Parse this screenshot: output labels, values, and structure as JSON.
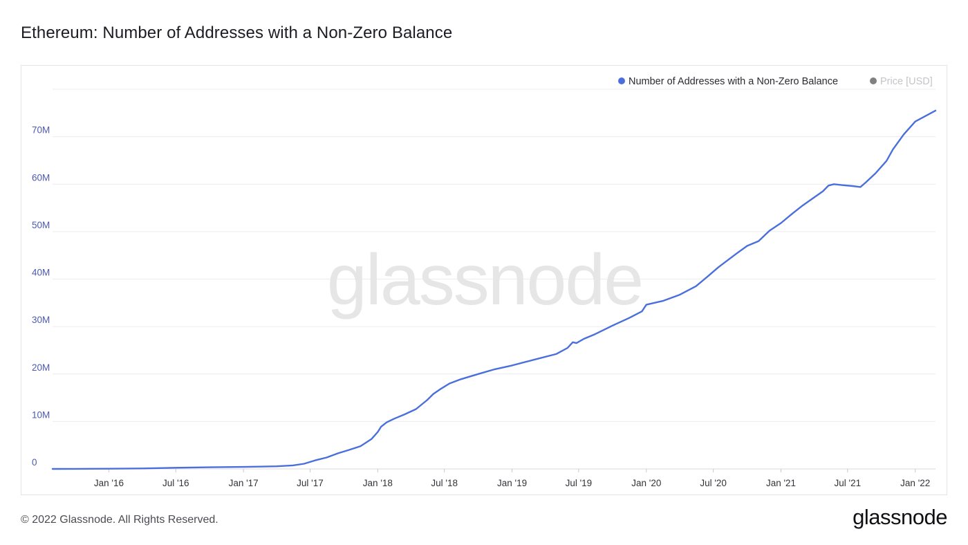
{
  "page": {
    "title": "Ethereum: Number of Addresses with a Non-Zero Balance",
    "copyright": "© 2022 Glassnode. All Rights Reserved.",
    "logo_text": "glassnode",
    "watermark": "glassnode"
  },
  "colors": {
    "series_line": "#4a6fdc",
    "legend_series_dot": "#4a6fdc",
    "legend_price_dot": "#808080",
    "legend_price_text": "#c4c4c8",
    "axis_label": "#4d5ab0",
    "x_tick_label": "#333338",
    "grid": "#ececf0",
    "watermark": "#e6e6e6"
  },
  "chart_data": {
    "type": "line",
    "title": "Ethereum: Number of Addresses with a Non-Zero Balance",
    "legend": {
      "placement": "top-right",
      "items": [
        {
          "name": "Number of Addresses with a Non-Zero Balance",
          "active": true
        },
        {
          "name": "Price [USD]",
          "active": false
        }
      ]
    },
    "grid": true,
    "x_axis": {
      "type": "date",
      "range": [
        "2015-08-01",
        "2022-02-25"
      ],
      "ticks": [
        {
          "date": "2016-01-01",
          "label": "Jan '16"
        },
        {
          "date": "2016-07-01",
          "label": "Jul '16"
        },
        {
          "date": "2017-01-01",
          "label": "Jan '17"
        },
        {
          "date": "2017-07-01",
          "label": "Jul '17"
        },
        {
          "date": "2018-01-01",
          "label": "Jan '18"
        },
        {
          "date": "2018-07-01",
          "label": "Jul '18"
        },
        {
          "date": "2019-01-01",
          "label": "Jan '19"
        },
        {
          "date": "2019-07-01",
          "label": "Jul '19"
        },
        {
          "date": "2020-01-01",
          "label": "Jan '20"
        },
        {
          "date": "2020-07-01",
          "label": "Jul '20"
        },
        {
          "date": "2021-01-01",
          "label": "Jan '21"
        },
        {
          "date": "2021-07-01",
          "label": "Jul '21"
        },
        {
          "date": "2022-01-01",
          "label": "Jan '22"
        }
      ]
    },
    "y_axis": {
      "range": [
        0,
        80000000
      ],
      "ticks": [
        {
          "value": 0,
          "label": "0"
        },
        {
          "value": 10000000,
          "label": "10M"
        },
        {
          "value": 20000000,
          "label": "20M"
        },
        {
          "value": 30000000,
          "label": "30M"
        },
        {
          "value": 40000000,
          "label": "40M"
        },
        {
          "value": 50000000,
          "label": "50M"
        },
        {
          "value": 60000000,
          "label": "60M"
        },
        {
          "value": 70000000,
          "label": "70M"
        }
      ]
    },
    "series": [
      {
        "name": "Number of Addresses with a Non-Zero Balance",
        "points": [
          [
            "2015-08-01",
            0
          ],
          [
            "2015-10-01",
            20000
          ],
          [
            "2016-01-01",
            50000
          ],
          [
            "2016-04-01",
            100000
          ],
          [
            "2016-07-01",
            250000
          ],
          [
            "2016-10-01",
            350000
          ],
          [
            "2017-01-01",
            420000
          ],
          [
            "2017-04-01",
            550000
          ],
          [
            "2017-05-15",
            750000
          ],
          [
            "2017-06-15",
            1100000
          ],
          [
            "2017-07-15",
            1800000
          ],
          [
            "2017-08-15",
            2400000
          ],
          [
            "2017-09-15",
            3300000
          ],
          [
            "2017-10-15",
            4000000
          ],
          [
            "2017-11-15",
            4800000
          ],
          [
            "2017-12-15",
            6300000
          ],
          [
            "2018-01-01",
            7800000
          ],
          [
            "2018-01-10",
            8900000
          ],
          [
            "2018-01-25",
            9800000
          ],
          [
            "2018-02-15",
            10600000
          ],
          [
            "2018-03-15",
            11500000
          ],
          [
            "2018-04-15",
            12600000
          ],
          [
            "2018-05-15",
            14500000
          ],
          [
            "2018-06-01",
            15800000
          ],
          [
            "2018-06-20",
            16800000
          ],
          [
            "2018-07-15",
            18000000
          ],
          [
            "2018-08-15",
            18900000
          ],
          [
            "2018-10-01",
            20000000
          ],
          [
            "2018-11-15",
            21000000
          ],
          [
            "2019-01-01",
            21800000
          ],
          [
            "2019-03-01",
            23000000
          ],
          [
            "2019-05-01",
            24200000
          ],
          [
            "2019-06-01",
            25500000
          ],
          [
            "2019-06-15",
            26700000
          ],
          [
            "2019-06-25",
            26500000
          ],
          [
            "2019-07-15",
            27400000
          ],
          [
            "2019-08-15",
            28400000
          ],
          [
            "2019-10-01",
            30200000
          ],
          [
            "2019-11-15",
            31800000
          ],
          [
            "2019-12-20",
            33200000
          ],
          [
            "2020-01-01",
            34600000
          ],
          [
            "2020-02-15",
            35400000
          ],
          [
            "2020-04-01",
            36700000
          ],
          [
            "2020-05-15",
            38500000
          ],
          [
            "2020-06-15",
            40500000
          ],
          [
            "2020-07-15",
            42500000
          ],
          [
            "2020-09-01",
            45300000
          ],
          [
            "2020-10-01",
            47000000
          ],
          [
            "2020-11-01",
            48000000
          ],
          [
            "2020-12-01",
            50200000
          ],
          [
            "2021-01-01",
            51800000
          ],
          [
            "2021-02-01",
            53800000
          ],
          [
            "2021-03-01",
            55500000
          ],
          [
            "2021-04-01",
            57200000
          ],
          [
            "2021-04-25",
            58500000
          ],
          [
            "2021-05-10",
            59700000
          ],
          [
            "2021-05-25",
            60000000
          ],
          [
            "2021-06-15",
            59800000
          ],
          [
            "2021-07-15",
            59600000
          ],
          [
            "2021-08-05",
            59400000
          ],
          [
            "2021-08-20",
            60400000
          ],
          [
            "2021-09-15",
            62300000
          ],
          [
            "2021-10-15",
            64900000
          ],
          [
            "2021-11-01",
            67300000
          ],
          [
            "2021-12-01",
            70500000
          ],
          [
            "2022-01-01",
            73200000
          ],
          [
            "2022-02-25",
            75500000
          ]
        ]
      }
    ]
  }
}
